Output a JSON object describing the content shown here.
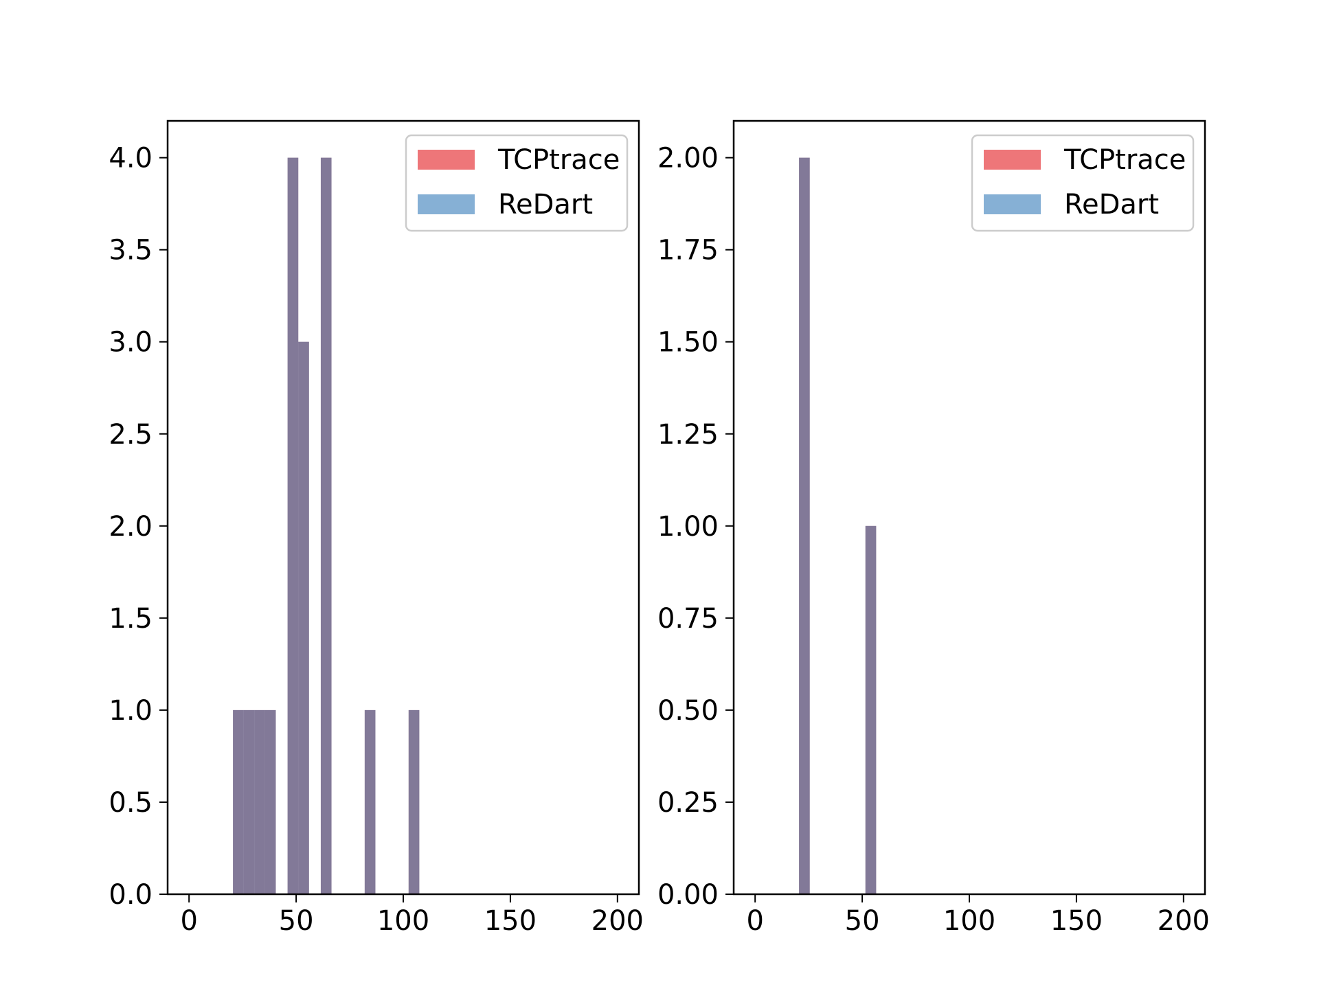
{
  "chart_data": [
    {
      "type": "bar",
      "title": "",
      "xlabel": "",
      "ylabel": "",
      "xlim": [
        -10,
        210
      ],
      "ylim": [
        0,
        4.2
      ],
      "xticks": [
        0,
        50,
        100,
        150,
        200
      ],
      "xtick_labels": [
        "0",
        "50",
        "100",
        "150",
        "200"
      ],
      "yticks": [
        0,
        0.5,
        1.0,
        1.5,
        2.0,
        2.5,
        3.0,
        3.5,
        4.0
      ],
      "ytick_labels": [
        "0.0",
        "0.5",
        "1.0",
        "1.5",
        "2.0",
        "2.5",
        "3.0",
        "3.5",
        "4.0"
      ],
      "legend": {
        "placement": "top-right"
      },
      "series": [
        {
          "name": "TCPtrace",
          "color": "#ee7679",
          "bins": [
            [
              20.5,
              25.5
            ],
            [
              25.5,
              30.5
            ],
            [
              30.5,
              35.5
            ],
            [
              35.5,
              40.5
            ],
            [
              46.0,
              51.0
            ],
            [
              51.0,
              56.0
            ],
            [
              61.5,
              66.5
            ],
            [
              82.0,
              87.0
            ],
            [
              102.5,
              107.5
            ]
          ],
          "values": [
            1,
            1,
            1,
            1,
            4,
            3,
            4,
            1,
            1
          ]
        },
        {
          "name": "ReDart",
          "color": "#86b0d5",
          "bins": [
            [
              20.5,
              25.5
            ],
            [
              25.5,
              30.5
            ],
            [
              30.5,
              35.5
            ],
            [
              35.5,
              40.5
            ],
            [
              46.0,
              51.0
            ],
            [
              51.0,
              56.0
            ],
            [
              61.5,
              66.5
            ],
            [
              82.0,
              87.0
            ],
            [
              102.5,
              107.5
            ]
          ],
          "values": [
            1,
            1,
            1,
            1,
            4,
            3,
            4,
            1,
            1
          ]
        }
      ]
    },
    {
      "type": "bar",
      "title": "",
      "xlabel": "",
      "ylabel": "",
      "xlim": [
        -10,
        210
      ],
      "ylim": [
        0,
        2.1
      ],
      "xticks": [
        0,
        50,
        100,
        150,
        200
      ],
      "xtick_labels": [
        "0",
        "50",
        "100",
        "150",
        "200"
      ],
      "yticks": [
        0,
        0.25,
        0.5,
        0.75,
        1.0,
        1.25,
        1.5,
        1.75,
        2.0
      ],
      "ytick_labels": [
        "0.00",
        "0.25",
        "0.50",
        "0.75",
        "1.00",
        "1.25",
        "1.50",
        "1.75",
        "2.00"
      ],
      "legend": {
        "placement": "top-right"
      },
      "series": [
        {
          "name": "TCPtrace",
          "color": "#ee7679",
          "bins": [
            [
              20.5,
              25.5
            ],
            [
              51.5,
              56.5
            ]
          ],
          "values": [
            2,
            1
          ]
        },
        {
          "name": "ReDart",
          "color": "#86b0d5",
          "bins": [
            [
              20.5,
              25.5
            ],
            [
              51.5,
              56.5
            ]
          ],
          "values": [
            2,
            1
          ]
        }
      ]
    }
  ]
}
